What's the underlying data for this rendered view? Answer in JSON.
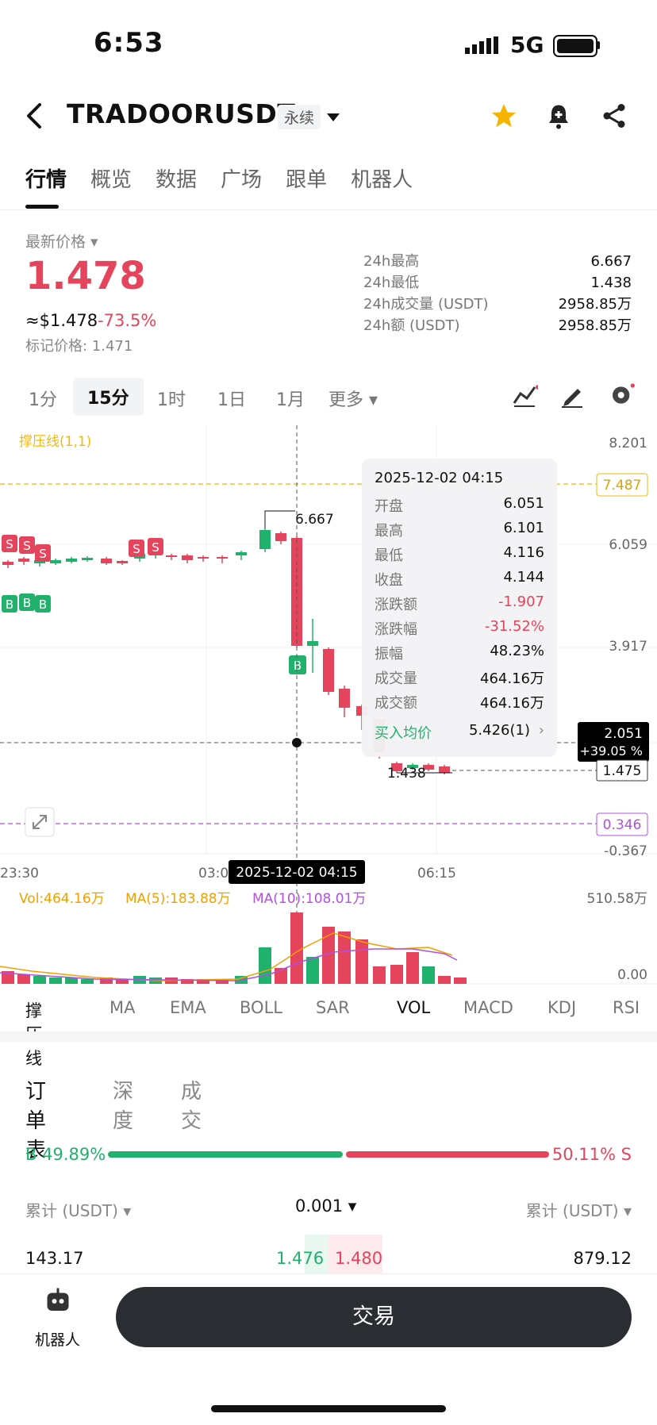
{
  "status": {
    "time": "6:53",
    "network": "5G"
  },
  "header": {
    "symbol": "TRADOORUSDT",
    "contract_type": "永续"
  },
  "tabs": [
    "行情",
    "概览",
    "数据",
    "广场",
    "跟单",
    "机器人"
  ],
  "ticker": {
    "latest_label": "最新价格",
    "price": "1.478",
    "usd_price": "≈$1.478",
    "change_pct": "-73.5%",
    "mark_price_label": "标记价格: 1.471",
    "stats": [
      {
        "label": "24h最高",
        "value": "6.667"
      },
      {
        "label": "24h最低",
        "value": "1.438"
      },
      {
        "label": "24h成交量 (USDT)",
        "value": "2958.85万"
      },
      {
        "label": "24h额 (USDT)",
        "value": "2958.85万"
      }
    ]
  },
  "timeframes": [
    "1分",
    "15分",
    "1时",
    "1日",
    "1月",
    "更多"
  ],
  "chart": {
    "indicator_title": "撑压线(1,1)",
    "y_labels": [
      "8.201",
      "6.059",
      "3.917",
      "-0.367"
    ],
    "resistance": "7.487",
    "support": "0.346",
    "current_price_tag": "1.475",
    "crosshair_value": "2.051",
    "crosshair_pct": "+39.05 %",
    "high_label": "6.667",
    "low_label": "1.438",
    "x_labels": [
      "23:30",
      "03:0",
      "06:15"
    ],
    "crosshair_time": "2025-12-02 04:15",
    "tooltip": {
      "time": "2025-12-02 04:15",
      "rows": [
        {
          "k": "开盘",
          "v": "6.051"
        },
        {
          "k": "最高",
          "v": "6.101"
        },
        {
          "k": "最低",
          "v": "4.116"
        },
        {
          "k": "收盘",
          "v": "4.144"
        },
        {
          "k": "涨跌额",
          "v": "-1.907"
        },
        {
          "k": "涨跌幅",
          "v": "-31.52%"
        },
        {
          "k": "振幅",
          "v": "48.23%"
        },
        {
          "k": "成交量",
          "v": "464.16万"
        },
        {
          "k": "成交额",
          "v": "464.16万"
        }
      ],
      "avg_buy_label": "买入均价",
      "avg_buy_value": "5.426(1)"
    },
    "vol": {
      "vol": "Vol:464.16万",
      "ma5": "MA(5):183.88万",
      "ma10": "MA(10):108.01万",
      "max": "510.58万",
      "min": "0.00"
    },
    "colors": {
      "up": "#20b26c",
      "down": "#e5455c",
      "resistance": "#f0b90b",
      "support": "#b050e0"
    }
  },
  "indicator_tabs": [
    "撑压线",
    "MA",
    "EMA",
    "BOLL",
    "SAR",
    "VOL",
    "MACD",
    "KDJ",
    "RSI"
  ],
  "orderbook": {
    "tabs": [
      "订单表",
      "深度",
      "成交"
    ],
    "buy_ratio": "49.89%",
    "sell_ratio": "50.11%",
    "buy_tag": "B",
    "sell_tag": "S",
    "left_header": "累计 (USDT)",
    "precision": "0.001",
    "right_header": "累计 (USDT)",
    "row": {
      "bid_total": "143.17",
      "bid": "1.476",
      "ask": "1.480",
      "ask_total": "879.12"
    }
  },
  "bottom": {
    "robot_label": "机器人",
    "trade_label": "交易"
  }
}
